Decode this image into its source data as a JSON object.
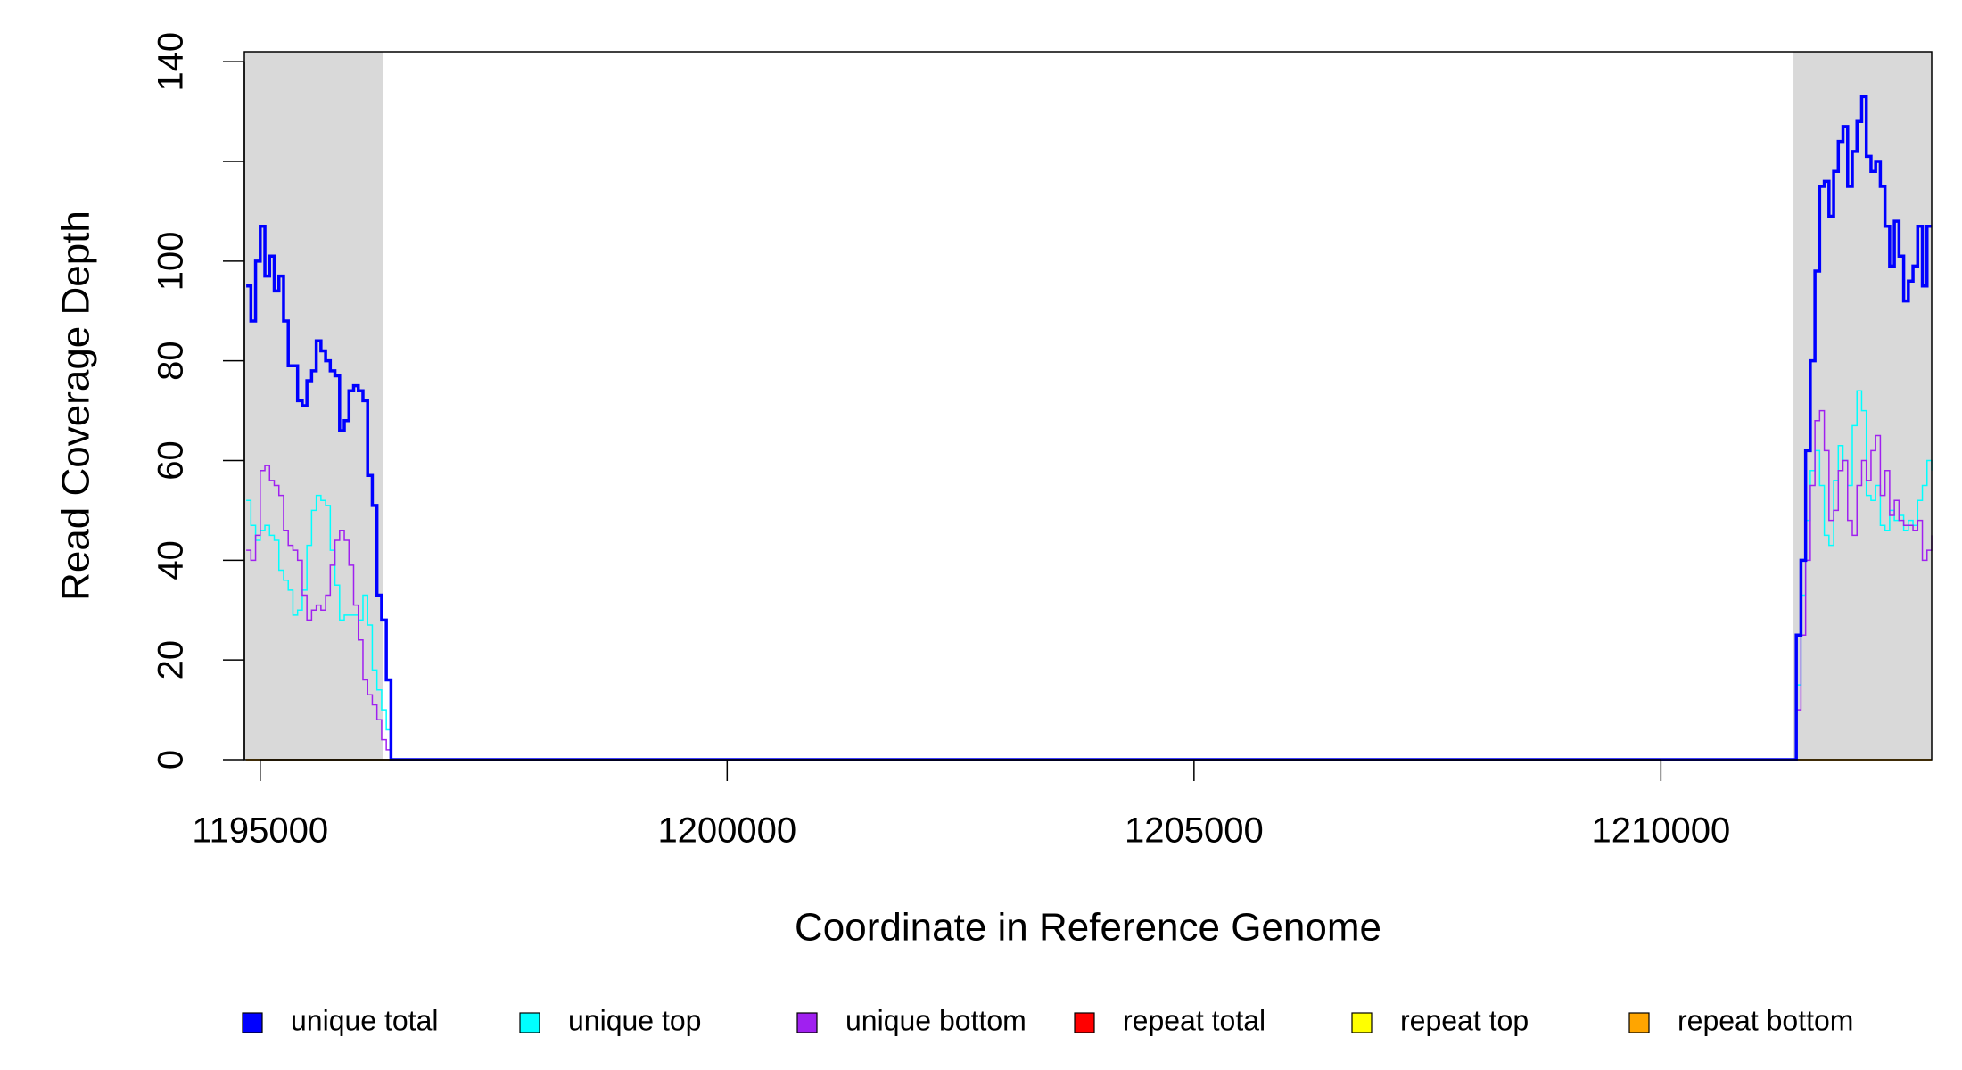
{
  "chart_data": {
    "type": "line",
    "step": true,
    "x_label": "Coordinate in Reference Genome",
    "y_label": "Read Coverage Depth",
    "xlim": [
      1194830,
      1212900
    ],
    "ylim": [
      0,
      142
    ],
    "xticks": [
      1195000,
      1200000,
      1205000,
      1210000
    ],
    "yticks": [
      0,
      20,
      40,
      60,
      80,
      100,
      {
        "value": 120,
        "label": null
      },
      140
    ],
    "shaded_regions": [
      [
        1194830,
        1196320
      ],
      [
        1211420,
        1212900
      ]
    ],
    "shade_color": "#d9d9d9",
    "x": [
      1194850,
      1194900,
      1194950,
      1195000,
      1195050,
      1195100,
      1195150,
      1195200,
      1195250,
      1195300,
      1195350,
      1195400,
      1195450,
      1195500,
      1195550,
      1195600,
      1195650,
      1195700,
      1195750,
      1195800,
      1195850,
      1195900,
      1195950,
      1196000,
      1196050,
      1196100,
      1196150,
      1196200,
      1196250,
      1196300,
      1196350,
      1196400,
      1196450,
      1211350,
      1211400,
      1211450,
      1211500,
      1211550,
      1211600,
      1211650,
      1211700,
      1211750,
      1211800,
      1211850,
      1211900,
      1211950,
      1212000,
      1212050,
      1212100,
      1212150,
      1212200,
      1212250,
      1212300,
      1212350,
      1212400,
      1212450,
      1212500,
      1212550,
      1212600,
      1212650,
      1212700,
      1212750,
      1212800,
      1212850,
      1212900
    ],
    "series": [
      {
        "name": "repeat total",
        "color": "#ff0000",
        "width": 1.5,
        "legend_order": 3,
        "values": [
          0,
          0,
          0,
          0,
          0,
          0,
          0,
          0,
          0,
          0,
          0,
          0,
          0,
          0,
          0,
          0,
          0,
          0,
          0,
          0,
          0,
          0,
          0,
          0,
          0,
          0,
          0,
          0,
          0,
          0,
          0,
          0,
          0,
          0,
          0,
          0,
          0,
          0,
          0,
          0,
          0,
          0,
          0,
          0,
          0,
          0,
          0,
          0,
          0,
          0,
          0,
          0,
          0,
          0,
          0,
          0,
          0,
          0,
          0,
          0,
          0,
          0,
          0,
          0,
          0
        ]
      },
      {
        "name": "repeat top",
        "color": "#ffff00",
        "width": 1.5,
        "legend_order": 4,
        "values": [
          0,
          0,
          0,
          0,
          0,
          0,
          0,
          0,
          0,
          0,
          0,
          0,
          0,
          0,
          0,
          0,
          0,
          0,
          0,
          0,
          0,
          0,
          0,
          0,
          0,
          0,
          0,
          0,
          0,
          0,
          0,
          0,
          0,
          0,
          0,
          0,
          0,
          0,
          0,
          0,
          0,
          0,
          0,
          0,
          0,
          0,
          0,
          0,
          0,
          0,
          0,
          0,
          0,
          0,
          0,
          0,
          0,
          0,
          0,
          0,
          0,
          0,
          0,
          0,
          0
        ]
      },
      {
        "name": "repeat bottom",
        "color": "#ffa500",
        "width": 1.5,
        "legend_order": 5,
        "values": [
          0,
          0,
          0,
          0,
          0,
          0,
          0,
          0,
          0,
          0,
          0,
          0,
          0,
          0,
          0,
          0,
          0,
          0,
          0,
          0,
          0,
          0,
          0,
          0,
          0,
          0,
          0,
          0,
          0,
          0,
          0,
          0,
          0,
          0,
          0,
          0,
          0,
          0,
          0,
          0,
          0,
          0,
          0,
          0,
          0,
          0,
          0,
          0,
          0,
          0,
          0,
          0,
          0,
          0,
          0,
          0,
          0,
          0,
          0,
          0,
          0,
          0,
          0,
          0,
          0
        ]
      },
      {
        "name": "unique top",
        "color": "#00ffff",
        "width": 1.5,
        "legend_order": 1,
        "values": [
          52,
          47,
          44,
          46,
          47,
          45,
          44,
          38,
          36,
          34,
          29,
          30,
          34,
          43,
          50,
          53,
          52,
          51,
          42,
          35,
          28,
          29,
          29,
          29,
          28,
          33,
          27,
          18,
          14,
          10,
          6,
          0,
          0,
          0,
          0,
          15,
          33,
          48,
          58,
          62,
          55,
          45,
          43,
          56,
          63,
          60,
          55,
          67,
          74,
          70,
          53,
          52,
          55,
          47,
          46,
          50,
          48,
          49,
          46,
          48,
          47,
          52,
          55,
          60,
          58
        ]
      },
      {
        "name": "unique bottom",
        "color": "#a020f0",
        "width": 1.5,
        "legend_order": 2,
        "values": [
          42,
          40,
          45,
          58,
          59,
          56,
          55,
          53,
          46,
          43,
          42,
          40,
          33,
          28,
          30,
          31,
          30,
          33,
          39,
          44,
          46,
          44,
          39,
          31,
          24,
          16,
          13,
          11,
          8,
          4,
          2,
          0,
          0,
          0,
          0,
          10,
          25,
          40,
          55,
          68,
          70,
          62,
          48,
          50,
          58,
          60,
          48,
          45,
          55,
          60,
          56,
          62,
          65,
          53,
          58,
          49,
          52,
          48,
          47,
          47,
          46,
          48,
          40,
          42,
          45
        ]
      },
      {
        "name": "unique total",
        "color": "#0000ff",
        "width": 3.5,
        "legend_order": 0,
        "values": [
          95,
          88,
          100,
          107,
          97,
          101,
          94,
          97,
          88,
          79,
          79,
          72,
          71,
          76,
          78,
          84,
          82,
          80,
          78,
          77,
          66,
          68,
          74,
          75,
          74,
          72,
          57,
          51,
          33,
          28,
          16,
          0,
          0,
          0,
          0,
          25,
          40,
          62,
          80,
          98,
          115,
          116,
          109,
          118,
          124,
          127,
          115,
          122,
          128,
          133,
          121,
          118,
          120,
          115,
          107,
          99,
          108,
          101,
          92,
          96,
          99,
          107,
          95,
          107,
          107
        ]
      }
    ]
  }
}
